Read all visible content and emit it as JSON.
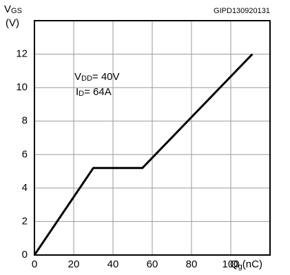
{
  "chart_data": {
    "type": "line",
    "code": "GIPD130920131",
    "y_label": {
      "symbol": "V",
      "subscript": "GS",
      "unit": "(V)"
    },
    "x_label": {
      "symbol": "Q",
      "subscript": "g",
      "unit": "(nC)"
    },
    "annotations": [
      {
        "symbol": "V",
        "subscript": "DD",
        "text": "= 40V"
      },
      {
        "symbol": "I",
        "subscript": "D",
        "text": "= 64A"
      }
    ],
    "x": [
      0,
      30,
      55,
      111
    ],
    "series": [
      {
        "color": "#000000",
        "values": [
          0,
          5.2,
          5.2,
          12
        ]
      }
    ],
    "xlim": [
      0,
      120
    ],
    "xticks": [
      0,
      20,
      40,
      60,
      80,
      100
    ],
    "ylim": [
      0,
      14
    ],
    "yticks": [
      0,
      2,
      4,
      6,
      8,
      10,
      12
    ],
    "grid": true
  }
}
